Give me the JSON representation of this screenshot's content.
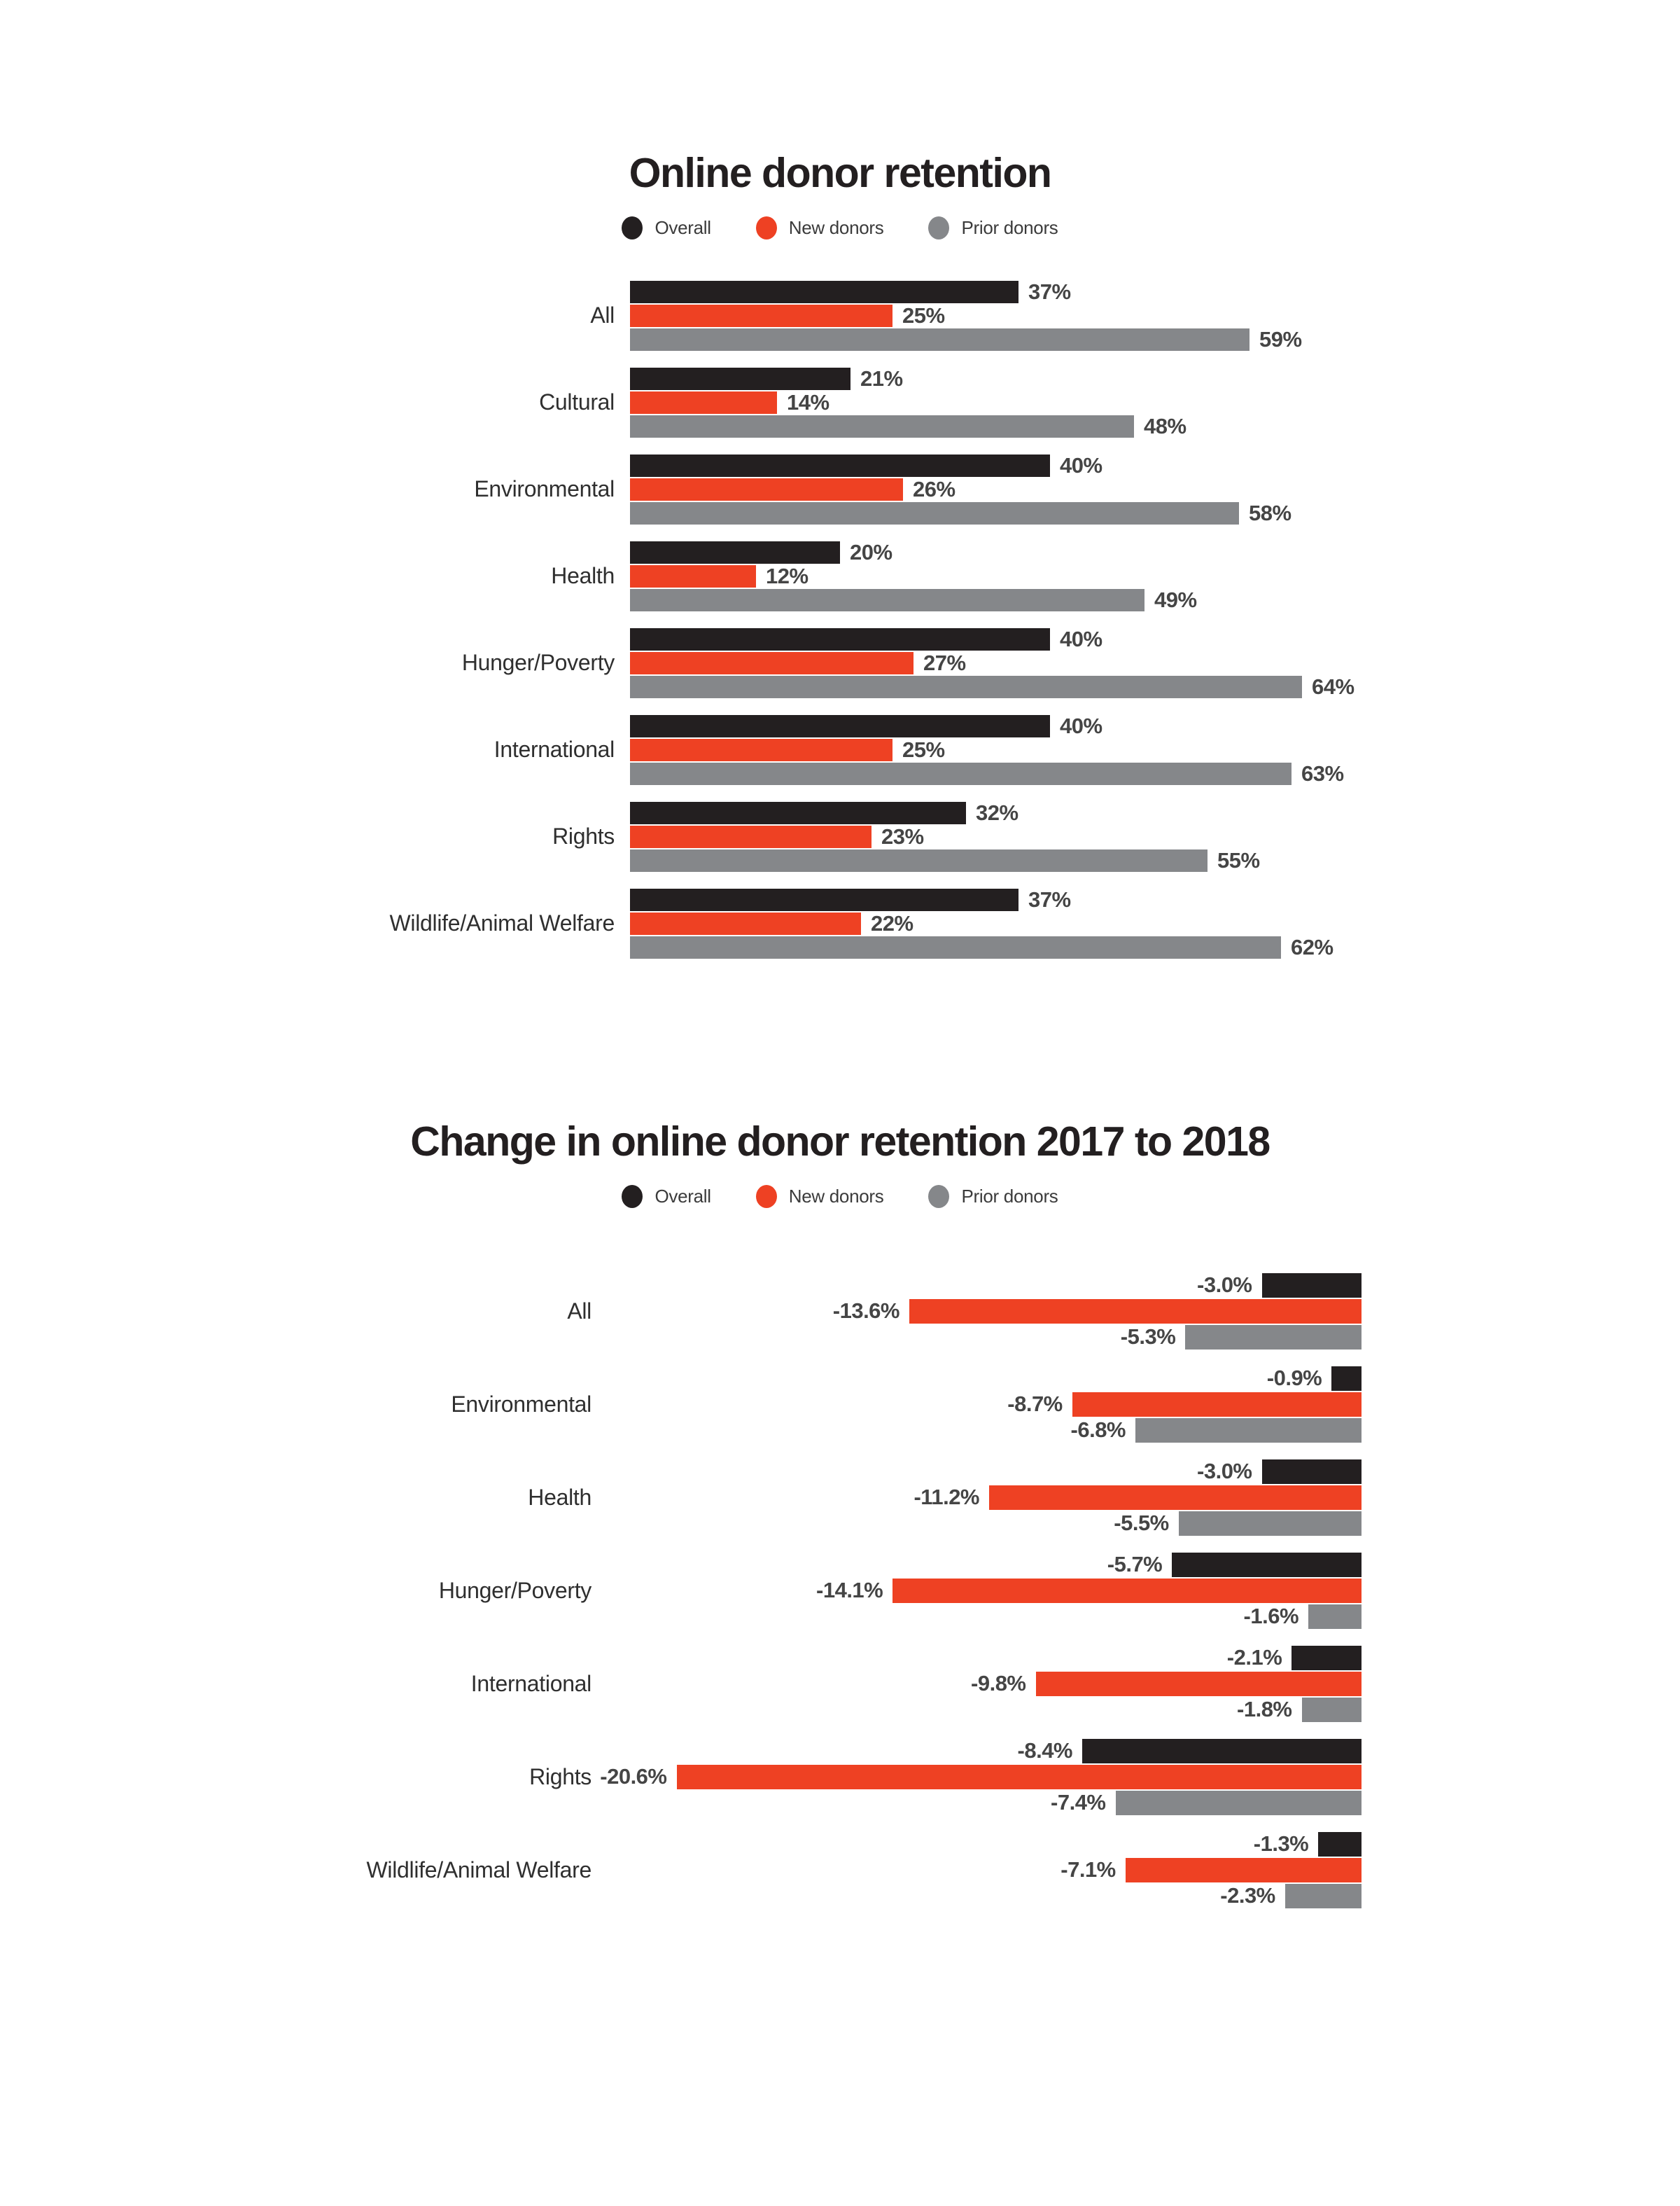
{
  "page": {
    "background": "#ffffff"
  },
  "colors": {
    "overall": "#231f20",
    "new_donors": "#ee4123",
    "prior_donors": "#85878a",
    "value_label": "#454545"
  },
  "charts": [
    {
      "title": "Online donor retention",
      "legend": [
        {
          "label": "Overall",
          "color": "#231f20"
        },
        {
          "label": "New donors",
          "color": "#ee4123"
        },
        {
          "label": "Prior donors",
          "color": "#85878a"
        }
      ],
      "chart_data": {
        "type": "bar",
        "orientation": "horizontal",
        "unit": "%",
        "xlim": [
          0,
          100
        ],
        "grid": false,
        "legend_position": "top-center",
        "highlight_category": "All",
        "categories": [
          "All",
          "Cultural",
          "Environmental",
          "Health",
          "Hunger/Poverty",
          "International",
          "Rights",
          "Wildlife/Animal Welfare"
        ],
        "series": [
          {
            "name": "Overall",
            "values": [
              37,
              21,
              40,
              20,
              40,
              40,
              32,
              37
            ],
            "labels": [
              "37%",
              "21%",
              "40%",
              "20%",
              "40%",
              "40%",
              "32%",
              "37%"
            ]
          },
          {
            "name": "New donors",
            "values": [
              25,
              14,
              26,
              12,
              27,
              25,
              23,
              22
            ],
            "labels": [
              "25%",
              "14%",
              "26%",
              "12%",
              "27%",
              "25%",
              "23%",
              "22%"
            ]
          },
          {
            "name": "Prior donors",
            "values": [
              59,
              48,
              58,
              49,
              64,
              63,
              55,
              62
            ],
            "labels": [
              "59%",
              "48%",
              "58%",
              "49%",
              "64%",
              "63%",
              "55%",
              "62%"
            ]
          }
        ]
      }
    },
    {
      "title": "Change in online donor retention 2017 to 2018",
      "legend": [
        {
          "label": "Overall",
          "color": "#231f20"
        },
        {
          "label": "New donors",
          "color": "#ee4123"
        },
        {
          "label": "Prior donors",
          "color": "#85878a"
        }
      ],
      "chart_data": {
        "type": "bar",
        "orientation": "horizontal",
        "unit": "%",
        "xlim": [
          -22,
          0
        ],
        "grid": false,
        "legend_position": "top-center",
        "highlight_category": "All",
        "categories": [
          "All",
          "Environmental",
          "Health",
          "Hunger/Poverty",
          "International",
          "Rights",
          "Wildlife/Animal Welfare"
        ],
        "series": [
          {
            "name": "Overall",
            "values": [
              -3.0,
              -0.9,
              -3.0,
              -5.7,
              -2.1,
              -8.4,
              -1.3
            ],
            "labels": [
              "-3.0%",
              "-0.9%",
              "-3.0%",
              "-5.7%",
              "-2.1%",
              "-8.4%",
              "-1.3%"
            ]
          },
          {
            "name": "New donors",
            "values": [
              -13.6,
              -8.7,
              -11.2,
              -14.1,
              -9.8,
              -20.6,
              -7.1
            ],
            "labels": [
              "-13.6%",
              "-8.7%",
              "-11.2%",
              "-14.1%",
              "-9.8%",
              "-20.6%",
              "-7.1%"
            ]
          },
          {
            "name": "Prior donors",
            "values": [
              -5.3,
              -6.8,
              -5.5,
              -1.6,
              -1.8,
              -7.4,
              -2.3
            ],
            "labels": [
              "-5.3%",
              "-6.8%",
              "-5.5%",
              "-1.6%",
              "-1.8%",
              "-7.4%",
              "-2.3%"
            ]
          }
        ]
      }
    }
  ]
}
